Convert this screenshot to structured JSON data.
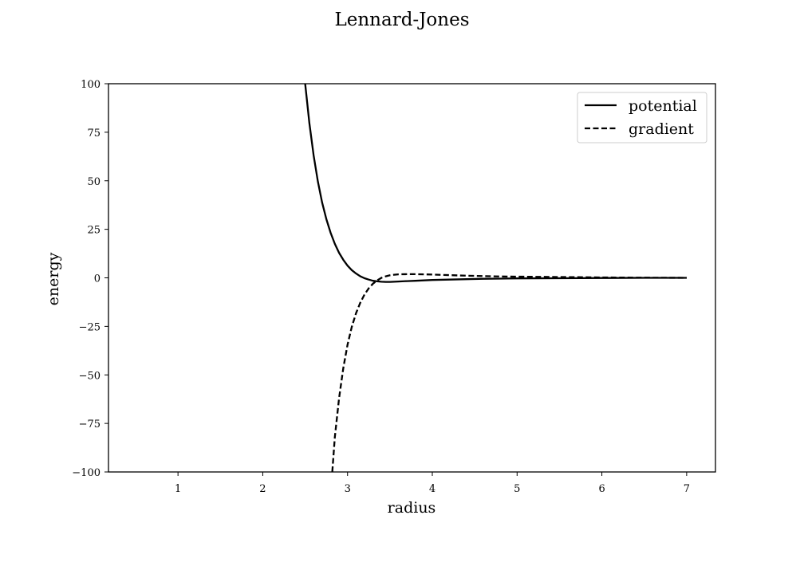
{
  "chart_data": {
    "type": "line",
    "title": "Lennard-Jones",
    "xlabel": "radius",
    "ylabel": "energy",
    "xlim": [
      0.18,
      7.34
    ],
    "ylim": [
      -100,
      100
    ],
    "x_ticks": [
      1,
      2,
      3,
      4,
      5,
      6,
      7
    ],
    "x_tick_labels": [
      "1",
      "2",
      "3",
      "4",
      "5",
      "6",
      "7"
    ],
    "y_ticks": [
      100,
      75,
      50,
      25,
      0,
      -25,
      -50,
      -75,
      -100
    ],
    "y_tick_labels": [
      "100",
      "75",
      "50",
      "25",
      "0",
      "−25",
      "−50",
      "−75",
      "−100"
    ],
    "grid": false,
    "legend_position": "upper right",
    "series": [
      {
        "name": "potential",
        "style": "solid",
        "color": "#000000",
        "x": [
          2.5,
          2.55,
          2.6,
          2.65,
          2.7,
          2.75,
          2.8,
          2.85,
          2.9,
          2.95,
          3.0,
          3.05,
          3.1,
          3.15,
          3.2,
          3.25,
          3.3,
          3.35,
          3.4,
          3.45,
          3.5,
          3.55,
          3.6,
          3.7,
          3.8,
          3.9,
          4.0,
          4.2,
          4.4,
          4.6,
          4.8,
          5.0,
          5.5,
          6.0,
          6.5,
          7.0
        ],
        "y": [
          100.0,
          79.6,
          63.1,
          49.7,
          38.9,
          30.2,
          23.2,
          17.5,
          12.9,
          9.3,
          6.3,
          4.0,
          2.2,
          0.8,
          -0.2,
          -0.9,
          -1.5,
          -1.8,
          -2.0,
          -2.1,
          -2.1,
          -2.0,
          -1.9,
          -1.7,
          -1.5,
          -1.3,
          -1.1,
          -0.9,
          -0.7,
          -0.5,
          -0.4,
          -0.3,
          -0.2,
          -0.1,
          0.0,
          0.0
        ]
      },
      {
        "name": "gradient",
        "style": "dashed",
        "color": "#000000",
        "x": [
          2.82,
          2.85,
          2.9,
          2.95,
          3.0,
          3.05,
          3.1,
          3.15,
          3.2,
          3.25,
          3.3,
          3.35,
          3.4,
          3.45,
          3.5,
          3.55,
          3.6,
          3.7,
          3.8,
          3.9,
          4.0,
          4.2,
          4.4,
          4.6,
          4.8,
          5.0,
          5.5,
          6.0,
          6.5,
          7.0
        ],
        "y": [
          -100.0,
          -82.0,
          -62.0,
          -46.5,
          -34.5,
          -25.3,
          -18.2,
          -12.8,
          -8.6,
          -5.4,
          -3.0,
          -1.3,
          0.0,
          0.8,
          1.3,
          1.6,
          1.8,
          1.9,
          1.9,
          1.8,
          1.7,
          1.4,
          1.1,
          0.9,
          0.7,
          0.6,
          0.4,
          0.2,
          0.1,
          0.0
        ]
      }
    ]
  }
}
